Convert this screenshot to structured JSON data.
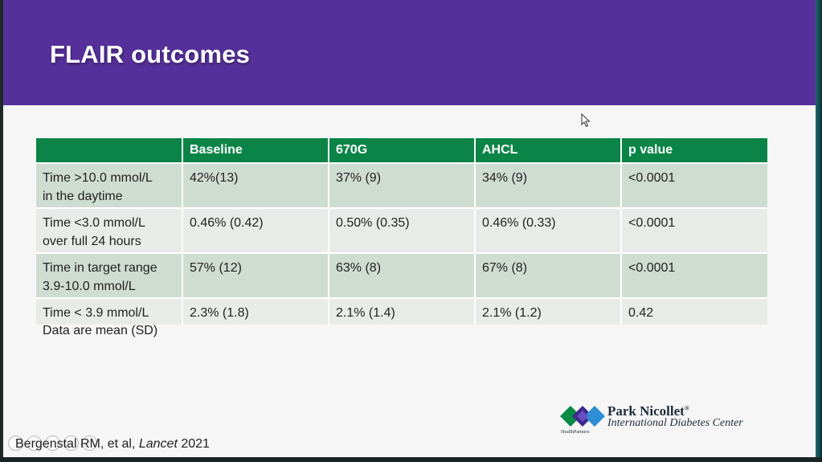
{
  "slide": {
    "title": "FLAIR outcomes",
    "note": "Data are mean (SD)",
    "citation": {
      "authors": "Bergenstal RM, et al, ",
      "journal": "Lancet",
      "year": " 2021"
    }
  },
  "table": {
    "headers": [
      "",
      "Baseline",
      "670G",
      "AHCL",
      "p value"
    ],
    "rows": [
      {
        "label_line1": "Time >10.0 mmol/L",
        "label_line2": "in the daytime",
        "baseline": "42%(13)",
        "g670": "37% (9)",
        "ahcl": "34% (9)",
        "p": "<0.0001"
      },
      {
        "label_line1": "Time <3.0 mmol/L",
        "label_line2": "over full 24 hours",
        "baseline": "0.46% (0.42)",
        "g670": "0.50% (0.35)",
        "ahcl": "0.46% (0.33)",
        "p": "<0.0001"
      },
      {
        "label_line1": "Time in target range",
        "label_line2": "3.9-10.0 mmol/L",
        "baseline": "57% (12)",
        "g670": "63% (8)",
        "ahcl": "67% (8)",
        "p": "<0.0001"
      },
      {
        "label_line1": "Time < 3.9 mmol/L",
        "label_line2": "",
        "baseline": "2.3% (1.8)",
        "g670": "2.1% (1.4)",
        "ahcl": "2.1% (1.2)",
        "p": "0.42"
      }
    ]
  },
  "logo": {
    "name": "Park Nicollet",
    "trademark": "®",
    "subtitle": "International Diabetes Center",
    "parent": "HealthPartners"
  },
  "colors": {
    "header_purple": "#56309a",
    "table_header_green": "#0b8547",
    "row_odd": "#cfdcd2",
    "row_even": "#e7ece8"
  }
}
